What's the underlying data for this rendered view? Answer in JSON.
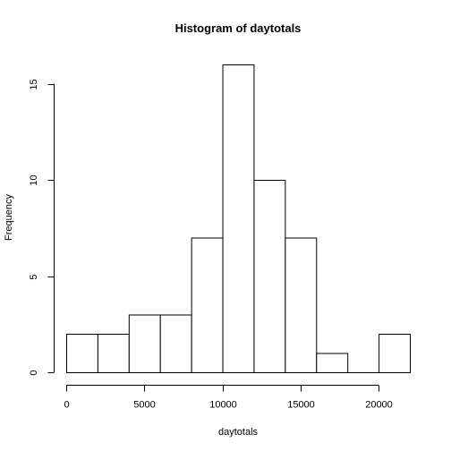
{
  "chart_data": {
    "type": "bar",
    "title": "Histogram of daytotals",
    "xlabel": "daytotals",
    "ylabel": "Frequency",
    "bin_edges": [
      0,
      2000,
      4000,
      6000,
      8000,
      10000,
      12000,
      14000,
      16000,
      18000,
      20000,
      22000
    ],
    "values": [
      2,
      2,
      3,
      3,
      7,
      16,
      10,
      7,
      1,
      0,
      2
    ],
    "xlim": [
      0,
      22000
    ],
    "ylim": [
      0,
      16
    ],
    "x_ticks": [
      0,
      5000,
      10000,
      15000,
      20000
    ],
    "x_tick_labels": [
      "0",
      "5000",
      "10000",
      "15000",
      "20000"
    ],
    "y_ticks": [
      0,
      5,
      10,
      15
    ],
    "y_tick_labels": [
      "0",
      "5",
      "10",
      "15"
    ],
    "grid": false,
    "bar_fill": "#ffffff",
    "bar_stroke": "#000000"
  }
}
